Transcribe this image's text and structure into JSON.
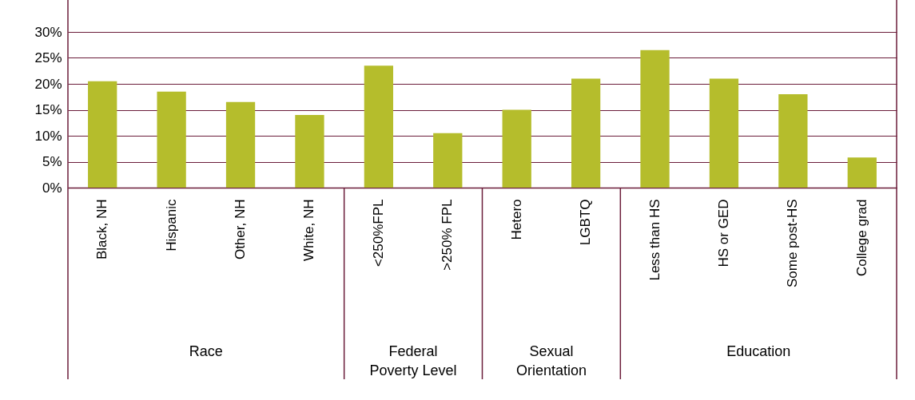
{
  "chart_data": {
    "type": "bar",
    "categories": [
      "Black, NH",
      "Hispanic",
      "Other, NH",
      "White, NH",
      "<250%FPL",
      ">250% FPL",
      "Hetero",
      "LGBTQ",
      "Less than HS",
      "HS or GED",
      "Some post-HS",
      "College grad"
    ],
    "values": [
      20.5,
      18.5,
      16.5,
      14,
      23.5,
      10.5,
      15,
      21,
      26.5,
      21,
      18,
      5.8
    ],
    "color": "#b5bd2c",
    "ylim": [
      0,
      30
    ],
    "yticks": [
      {
        "value": 0,
        "label": "0%"
      },
      {
        "value": 5,
        "label": "5%"
      },
      {
        "value": 10,
        "label": "10%"
      },
      {
        "value": 15,
        "label": "15%"
      },
      {
        "value": 20,
        "label": "20%"
      },
      {
        "value": 25,
        "label": "25%"
      },
      {
        "value": 30,
        "label": "30%"
      }
    ],
    "grid": "y",
    "annotations": [
      "Race",
      "Federal Poverty Level",
      "Sexual Orientation",
      "Education"
    ]
  }
}
